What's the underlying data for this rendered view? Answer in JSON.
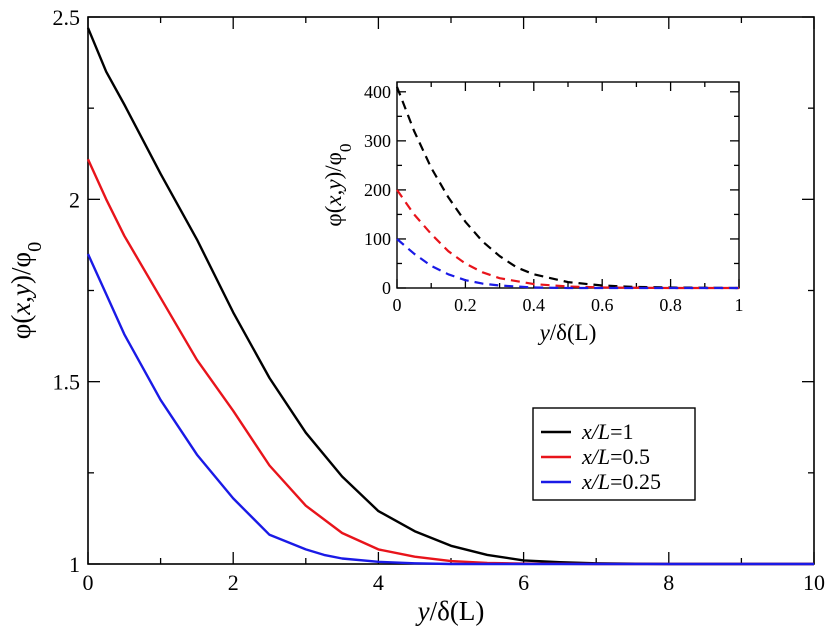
{
  "chart_data": [
    {
      "id": "main",
      "type": "line",
      "xlabel": "y/δ(L)",
      "ylabel": "φ(x,y)/φ₀",
      "xlim": [
        0,
        10
      ],
      "ylim": [
        1,
        2.5
      ],
      "xticks": [
        "0",
        "2",
        "4",
        "6",
        "8",
        "10"
      ],
      "yticks": [
        "1",
        "1.5",
        "2",
        "2.5"
      ],
      "legend": {
        "placement": "center-right"
      },
      "series": [
        {
          "name": "x/L=1",
          "name_italic": "x/L",
          "name_suffix": "=1",
          "color": "#000000",
          "dash": false,
          "x": [
            0,
            0.25,
            0.5,
            1.0,
            1.5,
            2.0,
            2.5,
            3.0,
            3.5,
            4.0,
            4.5,
            5.0,
            5.5,
            6.0,
            6.5,
            7.0,
            8.0,
            10.0
          ],
          "y": [
            2.47,
            2.35,
            2.26,
            2.07,
            1.89,
            1.69,
            1.51,
            1.36,
            1.24,
            1.145,
            1.09,
            1.05,
            1.025,
            1.01,
            1.005,
            1.002,
            1.0,
            1.0
          ]
        },
        {
          "name": "x/L=0.5",
          "name_italic": "x/L",
          "name_suffix": "=0.5",
          "color": "#e8141b",
          "dash": false,
          "x": [
            0,
            0.25,
            0.5,
            1.0,
            1.5,
            2.0,
            2.5,
            3.0,
            3.5,
            4.0,
            4.5,
            5.0,
            5.5,
            6.0,
            7.0,
            8.0,
            10.0
          ],
          "y": [
            2.11,
            2.0,
            1.9,
            1.73,
            1.56,
            1.42,
            1.27,
            1.16,
            1.085,
            1.04,
            1.02,
            1.008,
            1.003,
            1.001,
            1.0,
            1.0,
            1.0
          ]
        },
        {
          "name": "x/L=0.25",
          "name_italic": "x/L",
          "name_suffix": "=0.25",
          "color": "#1a1ae6",
          "dash": false,
          "x": [
            0,
            0.25,
            0.5,
            1.0,
            1.5,
            2.0,
            2.5,
            3.0,
            3.25,
            3.5,
            4.0,
            4.5,
            5.0,
            6.0,
            8.0,
            10.0
          ],
          "y": [
            1.85,
            1.74,
            1.63,
            1.45,
            1.3,
            1.18,
            1.08,
            1.04,
            1.025,
            1.015,
            1.006,
            1.002,
            1.0,
            1.0,
            1.0,
            1.0
          ]
        }
      ]
    },
    {
      "id": "inset",
      "type": "line",
      "xlabel": "y/δ(L)",
      "ylabel": "φ(x,y)/φ₀",
      "xlim": [
        0,
        1
      ],
      "ylim": [
        0,
        420
      ],
      "xticks": [
        "0",
        "0.2",
        "0.4",
        "0.6",
        "0.8",
        "1"
      ],
      "yticks": [
        "0",
        "100",
        "200",
        "300",
        "400"
      ],
      "series": [
        {
          "name": "x/L=1",
          "color": "#000000",
          "dash": true,
          "x": [
            0,
            0.05,
            0.1,
            0.15,
            0.2,
            0.25,
            0.3,
            0.35,
            0.4,
            0.5,
            0.6,
            0.7,
            0.8,
            1.0
          ],
          "y": [
            410,
            320,
            245,
            185,
            135,
            95,
            65,
            42,
            28,
            12,
            5,
            2,
            1,
            0
          ]
        },
        {
          "name": "x/L=0.5",
          "color": "#e8141b",
          "dash": true,
          "x": [
            0,
            0.05,
            0.1,
            0.15,
            0.2,
            0.25,
            0.3,
            0.4,
            0.5,
            0.6,
            0.8,
            1.0
          ],
          "y": [
            200,
            150,
            110,
            75,
            50,
            32,
            20,
            8,
            3,
            1,
            0,
            0
          ]
        },
        {
          "name": "x/L=0.25",
          "color": "#1a1ae6",
          "dash": true,
          "x": [
            0,
            0.05,
            0.1,
            0.15,
            0.2,
            0.25,
            0.3,
            0.4,
            0.5,
            0.6,
            0.8,
            1.0
          ],
          "y": [
            100,
            70,
            45,
            28,
            16,
            9,
            5,
            1,
            0,
            0,
            0,
            0
          ]
        }
      ]
    }
  ]
}
